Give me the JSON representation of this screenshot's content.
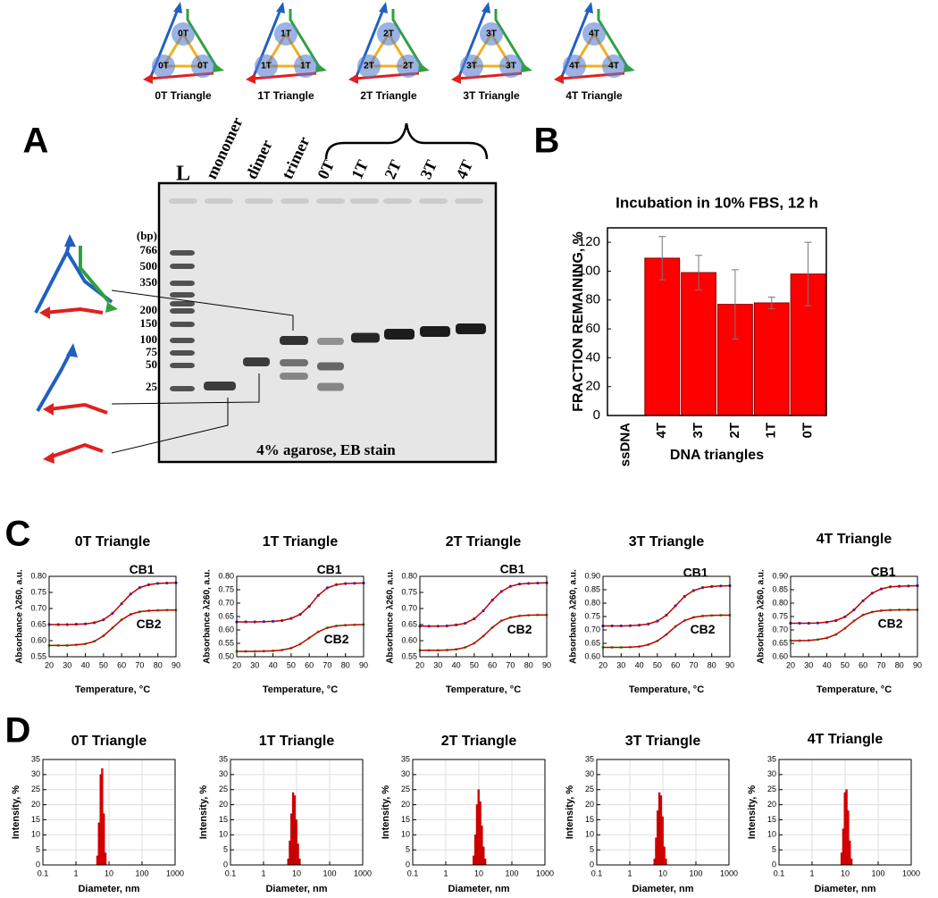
{
  "panels": [
    "A",
    "B",
    "C",
    "D"
  ],
  "triangles": [
    {
      "nodes": [
        "0T",
        "0T",
        "0T"
      ],
      "caption": "0T Triangle"
    },
    {
      "nodes": [
        "1T",
        "1T",
        "1T"
      ],
      "caption": "1T Triangle"
    },
    {
      "nodes": [
        "2T",
        "2T",
        "2T"
      ],
      "caption": "2T Triangle"
    },
    {
      "nodes": [
        "3T",
        "3T",
        "3T"
      ],
      "caption": "3T Triangle"
    },
    {
      "nodes": [
        "4T",
        "4T",
        "4T"
      ],
      "caption": "4T Triangle"
    }
  ],
  "gel": {
    "lanes": [
      "L",
      "monomer",
      "dimer",
      "trimer",
      "0T",
      "1T",
      "2T",
      "3T",
      "4T"
    ],
    "ladder_unit": "(bp)",
    "ladder": [
      766,
      500,
      350,
      200,
      150,
      100,
      75,
      50,
      25
    ],
    "caption": "4% agarose, EB stain"
  },
  "chart_data": [
    {
      "type": "bar",
      "title": "Incubation in 10% FBS, 12 h",
      "x_label": "DNA triangles",
      "y_label": "FRACTION REMAINING, %",
      "categories": [
        "ssDNA",
        "4T",
        "3T",
        "2T",
        "1T",
        "0T"
      ],
      "values": [
        0,
        109,
        99,
        77,
        78,
        98
      ],
      "errors": [
        0,
        15,
        12,
        24,
        4,
        22
      ],
      "color": "#ff0000",
      "ylim": [
        0,
        130
      ],
      "yticks": [
        0,
        20,
        40,
        60,
        80,
        100,
        120
      ]
    },
    {
      "type": "line",
      "title": "0T Triangle",
      "x_label": "Temperature, °C",
      "y_label": "Absorbance λ260, a.u.",
      "fit_color": "#c00000",
      "x": [
        20,
        25,
        30,
        35,
        40,
        45,
        50,
        55,
        60,
        65,
        70,
        75,
        80,
        85,
        90
      ],
      "xlim": [
        20,
        90
      ],
      "xticks": [
        20,
        30,
        40,
        50,
        60,
        70,
        80,
        90
      ],
      "ylim": [
        0.55,
        0.8
      ],
      "yticks": [
        0.55,
        {
          "value": 0.6,
          "label": "0.60"
        },
        0.65,
        {
          "value": 0.7,
          "label": "0.70"
        },
        0.75,
        {
          "value": 0.8,
          "label": "0.80"
        }
      ],
      "series": [
        {
          "name": "CB1",
          "color": "#2030e0",
          "values": [
            0.65,
            0.65,
            0.65,
            0.651,
            0.652,
            0.656,
            0.665,
            0.685,
            0.715,
            0.745,
            0.765,
            0.774,
            0.778,
            0.779,
            0.78
          ]
        },
        {
          "name": "CB2",
          "color": "#40d040",
          "values": [
            0.585,
            0.585,
            0.585,
            0.587,
            0.59,
            0.598,
            0.615,
            0.64,
            0.665,
            0.682,
            0.69,
            0.693,
            0.694,
            0.695,
            0.695
          ]
        }
      ]
    },
    {
      "type": "line",
      "title": "1T Triangle",
      "x_label": "Temperature, °C",
      "y_label": "Absorbance λ260, a.u.",
      "fit_color": "#c00000",
      "x": [
        20,
        25,
        30,
        35,
        40,
        45,
        50,
        55,
        60,
        65,
        70,
        75,
        80,
        85,
        90
      ],
      "xlim": [
        20,
        90
      ],
      "xticks": [
        20,
        30,
        40,
        50,
        60,
        70,
        80,
        90
      ],
      "ylim": [
        0.5,
        0.8
      ],
      "yticks": [
        {
          "value": 0.5,
          "label": "0.50"
        },
        0.55,
        {
          "value": 0.6,
          "label": "0.60"
        },
        0.65,
        {
          "value": 0.7,
          "label": "0.70"
        },
        0.75,
        {
          "value": 0.8,
          "label": "0.80"
        }
      ],
      "series": [
        {
          "name": "CB1",
          "color": "#2030e0",
          "values": [
            0.63,
            0.63,
            0.63,
            0.631,
            0.632,
            0.635,
            0.643,
            0.658,
            0.688,
            0.729,
            0.757,
            0.769,
            0.773,
            0.774,
            0.775
          ]
        },
        {
          "name": "CB2",
          "color": "#40d040",
          "values": [
            0.52,
            0.52,
            0.52,
            0.521,
            0.522,
            0.525,
            0.532,
            0.547,
            0.57,
            0.593,
            0.608,
            0.615,
            0.618,
            0.619,
            0.62
          ]
        }
      ]
    },
    {
      "type": "line",
      "title": "2T Triangle",
      "x_label": "Temperature, °C",
      "y_label": "Absorbance λ260, a.u.",
      "fit_color": "#c00000",
      "x": [
        20,
        25,
        30,
        35,
        40,
        45,
        50,
        55,
        60,
        65,
        70,
        75,
        80,
        85,
        90
      ],
      "xlim": [
        20,
        90
      ],
      "xticks": [
        20,
        30,
        40,
        50,
        60,
        70,
        80,
        90
      ],
      "ylim": [
        0.55,
        0.8
      ],
      "yticks": [
        0.55,
        {
          "value": 0.6,
          "label": "0.60"
        },
        0.65,
        {
          "value": 0.7,
          "label": "0.70"
        },
        0.75,
        {
          "value": 0.8,
          "label": "0.80"
        }
      ],
      "series": [
        {
          "name": "CB1",
          "color": "#2030e0",
          "values": [
            0.645,
            0.645,
            0.645,
            0.646,
            0.649,
            0.654,
            0.668,
            0.693,
            0.726,
            0.753,
            0.769,
            0.776,
            0.778,
            0.779,
            0.78
          ]
        },
        {
          "name": "CB2",
          "color": "#40d040",
          "values": [
            0.57,
            0.57,
            0.57,
            0.571,
            0.573,
            0.579,
            0.592,
            0.614,
            0.641,
            0.662,
            0.672,
            0.677,
            0.679,
            0.68,
            0.68
          ]
        }
      ]
    },
    {
      "type": "line",
      "title": "3T Triangle",
      "x_label": "Temperature, °C",
      "y_label": "Absorbance λ260, a.u.",
      "fit_color": "#c00000",
      "x": [
        20,
        25,
        30,
        35,
        40,
        45,
        50,
        55,
        60,
        65,
        70,
        75,
        80,
        85,
        90
      ],
      "xlim": [
        20,
        90
      ],
      "xticks": [
        20,
        30,
        40,
        50,
        60,
        70,
        80,
        90
      ],
      "ylim": [
        0.6,
        0.9
      ],
      "yticks": [
        {
          "value": 0.6,
          "label": "0.60"
        },
        0.65,
        {
          "value": 0.7,
          "label": "0.70"
        },
        0.75,
        {
          "value": 0.8,
          "label": "0.80"
        },
        0.85,
        {
          "value": 0.9,
          "label": "0.90"
        }
      ],
      "series": [
        {
          "name": "CB1",
          "color": "#2030e0",
          "values": [
            0.715,
            0.715,
            0.715,
            0.716,
            0.718,
            0.722,
            0.733,
            0.755,
            0.79,
            0.825,
            0.847,
            0.858,
            0.862,
            0.864,
            0.865
          ]
        },
        {
          "name": "CB2",
          "color": "#40d040",
          "values": [
            0.635,
            0.635,
            0.635,
            0.636,
            0.638,
            0.645,
            0.659,
            0.683,
            0.713,
            0.735,
            0.747,
            0.752,
            0.754,
            0.755,
            0.755
          ]
        }
      ]
    },
    {
      "type": "line",
      "title": "4T Triangle",
      "x_label": "Temperature, °C",
      "y_label": "Absorbance λ260, a.u.",
      "fit_color": "#c00000",
      "x": [
        20,
        25,
        30,
        35,
        40,
        45,
        50,
        55,
        60,
        65,
        70,
        75,
        80,
        85,
        90
      ],
      "xlim": [
        20,
        90
      ],
      "xticks": [
        20,
        30,
        40,
        50,
        60,
        70,
        80,
        90
      ],
      "ylim": [
        0.6,
        0.9
      ],
      "yticks": [
        {
          "value": 0.6,
          "label": "0.60"
        },
        0.65,
        {
          "value": 0.7,
          "label": "0.70"
        },
        0.75,
        {
          "value": 0.8,
          "label": "0.80"
        },
        0.85,
        {
          "value": 0.9,
          "label": "0.90"
        }
      ],
      "series": [
        {
          "name": "CB1",
          "color": "#2030e0",
          "values": [
            0.725,
            0.725,
            0.725,
            0.726,
            0.729,
            0.735,
            0.749,
            0.775,
            0.809,
            0.837,
            0.853,
            0.861,
            0.863,
            0.864,
            0.865
          ]
        },
        {
          "name": "CB2",
          "color": "#40d040",
          "values": [
            0.66,
            0.66,
            0.661,
            0.664,
            0.67,
            0.683,
            0.706,
            0.734,
            0.756,
            0.767,
            0.772,
            0.774,
            0.775,
            0.775,
            0.775
          ]
        }
      ]
    },
    {
      "type": "histogram",
      "title": "0T Triangle",
      "x_label": "Diameter, nm",
      "y_label": "Intensity, %",
      "color": "#e00000",
      "log_x": true,
      "grid": true,
      "bins": [
        4.2,
        4.7,
        5.3,
        5.9,
        6.6,
        7.4,
        8.3
      ],
      "values": [
        3,
        14,
        30,
        32,
        17,
        4
      ],
      "xlim": [
        0.1,
        1000
      ],
      "xticks": [
        0.1,
        1,
        10,
        100,
        1000
      ],
      "ylim": [
        0,
        35
      ],
      "yticks": [
        0,
        5,
        10,
        15,
        20,
        25,
        30,
        35
      ]
    },
    {
      "type": "histogram",
      "title": "1T Triangle",
      "x_label": "Diameter, nm",
      "y_label": "Intensity, %",
      "color": "#e00000",
      "log_x": true,
      "grid": true,
      "bins": [
        5.3,
        5.9,
        6.6,
        7.4,
        8.3,
        9.3,
        10.4,
        11.7,
        13.1
      ],
      "values": [
        2,
        8,
        17,
        24,
        23,
        15,
        7,
        2
      ],
      "xlim": [
        0.1,
        1000
      ],
      "xticks": [
        0.1,
        1,
        10,
        100,
        1000
      ],
      "ylim": [
        0,
        35
      ],
      "yticks": [
        0,
        5,
        10,
        15,
        20,
        25,
        30,
        35
      ]
    },
    {
      "type": "histogram",
      "title": "2T Triangle",
      "x_label": "Diameter, nm",
      "y_label": "Intensity, %",
      "color": "#e00000",
      "log_x": true,
      "grid": true,
      "bins": [
        6.6,
        7.4,
        8.3,
        9.3,
        10.4,
        11.7,
        13.1,
        14.7,
        16.5
      ],
      "values": [
        3,
        10,
        20,
        25,
        21,
        13,
        6,
        2
      ],
      "xlim": [
        0.1,
        1000
      ],
      "xticks": [
        0.1,
        1,
        10,
        100,
        1000
      ],
      "ylim": [
        0,
        35
      ],
      "yticks": [
        0,
        5,
        10,
        15,
        20,
        25,
        30,
        35
      ]
    },
    {
      "type": "histogram",
      "title": "3T Triangle",
      "x_label": "Diameter, nm",
      "y_label": "Intensity, %",
      "color": "#e00000",
      "log_x": true,
      "grid": true,
      "bins": [
        5.3,
        5.9,
        6.6,
        7.4,
        8.3,
        9.3,
        10.4,
        11.7,
        13.1
      ],
      "values": [
        2,
        9,
        18,
        24,
        23,
        16,
        6,
        2
      ],
      "xlim": [
        0.1,
        1000
      ],
      "xticks": [
        0.1,
        1,
        10,
        100,
        1000
      ],
      "ylim": [
        0,
        35
      ],
      "yticks": [
        0,
        5,
        10,
        15,
        20,
        25,
        30,
        35
      ]
    },
    {
      "type": "histogram",
      "title": "4T Triangle",
      "x_label": "Diameter, nm",
      "y_label": "Intensity, %",
      "color": "#e00000",
      "log_x": true,
      "grid": true,
      "bins": [
        7.4,
        8.3,
        9.3,
        10.4,
        11.7,
        13.1,
        14.7,
        16.5
      ],
      "values": [
        4,
        12,
        24,
        25,
        18,
        8,
        2
      ],
      "xlim": [
        0.1,
        1000
      ],
      "xticks": [
        0.1,
        1,
        10,
        100,
        1000
      ],
      "ylim": [
        0,
        35
      ],
      "yticks": [
        0,
        5,
        10,
        15,
        20,
        25,
        30,
        35
      ]
    }
  ]
}
